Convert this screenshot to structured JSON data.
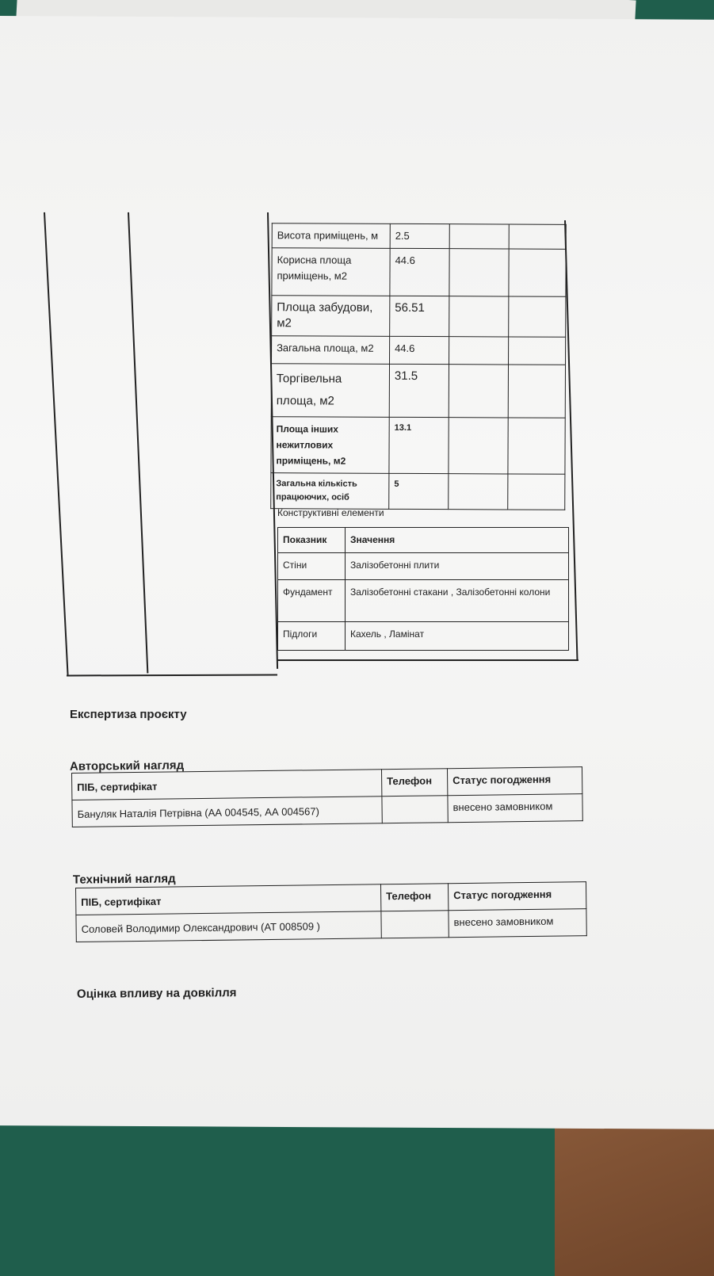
{
  "indicators_table": {
    "rows": [
      {
        "label": "Висота приміщень, м",
        "value": "2.5"
      },
      {
        "label": "Корисна площа приміщень, м2",
        "value": "44.6"
      },
      {
        "label": "Площа забудови, м2",
        "value": "56.51"
      },
      {
        "label": "Загальна площа, м2",
        "value": "44.6"
      },
      {
        "label": "Торгівельна площа, м2",
        "value": "31.5"
      },
      {
        "label": "Площа інших нежитлових приміщень, м2",
        "value": "13.1"
      },
      {
        "label": "Загальна кількість працюючих, осіб",
        "value": "5"
      }
    ]
  },
  "structural": {
    "title": "Конструктивні елементи",
    "headers": [
      "Показник",
      "Значення"
    ],
    "rows": [
      {
        "label": "Стіни",
        "value": "Залізобетонні плити"
      },
      {
        "label": "Фундамент",
        "value": "Залізобетонні стакани , Залізобетонні колони"
      },
      {
        "label": "Підлоги",
        "value": "Кахель , Ламінат"
      }
    ]
  },
  "expertise_heading": "Експертиза проєкту",
  "author_supervision": {
    "title": "Авторський нагляд",
    "headers": [
      "ПІБ, сертифікат",
      "Телефон",
      "Статус погодження"
    ],
    "row": {
      "name": "Бануляк Наталія Петрівна (АА 004545, АА 004567)",
      "phone": "",
      "status": "внесено замовником"
    }
  },
  "technical_supervision": {
    "title": "Технічний нагляд",
    "headers": [
      "ПІБ, сертифікат",
      "Телефон",
      "Статус погодження"
    ],
    "row": {
      "name": "Соловей Володимир Олександрович (АТ 008509 )",
      "phone": "",
      "status": "внесено замовником"
    }
  },
  "environment_heading": "Оцінка впливу на довкілля"
}
